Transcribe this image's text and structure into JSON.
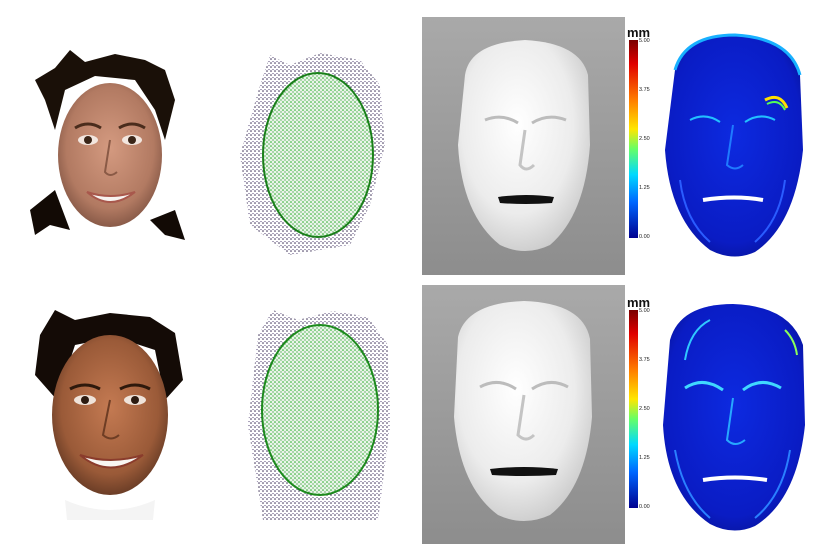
{
  "colorbars": [
    {
      "unit": "mm",
      "ticks": [
        "5.00",
        "3.75",
        "2.50",
        "1.25",
        "0.00"
      ]
    },
    {
      "unit": "mm",
      "ticks": [
        "5.00",
        "3.75",
        "2.50",
        "1.25",
        "0.00"
      ]
    }
  ],
  "colors": {
    "point_cloud_green": "#22aa22",
    "point_cloud_dark": "#3a2d55",
    "mesh_white": "#f1f1f1",
    "render_background": "#999999",
    "error_map_base": "#0b1fd6"
  },
  "rows": [
    {
      "subject": "female-smiling"
    },
    {
      "subject": "male-smiling"
    }
  ]
}
